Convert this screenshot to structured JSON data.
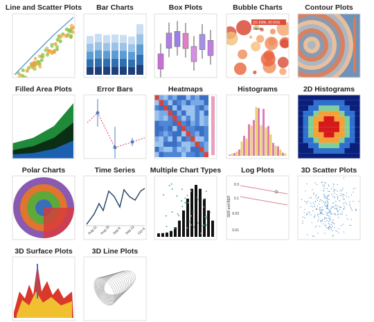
{
  "items": [
    {
      "title": "Line and Scatter Plots"
    },
    {
      "title": "Bar Charts"
    },
    {
      "title": "Box Plots"
    },
    {
      "title": "Bubble Charts",
      "labels": [
        "(31.698k, 82.603)",
        "Japan"
      ]
    },
    {
      "title": "Contour Plots"
    },
    {
      "title": "Filled Area Plots"
    },
    {
      "title": "Error Bars"
    },
    {
      "title": "Heatmaps"
    },
    {
      "title": "Histograms"
    },
    {
      "title": "2D Histograms"
    },
    {
      "title": "Polar Charts"
    },
    {
      "title": "Time Series",
      "labels": [
        "Aug 11",
        "Aug 25",
        "Sep 8",
        "Sep 22",
        "Oct 6"
      ]
    },
    {
      "title": "Multiple Chart Types"
    },
    {
      "title": "Log Plots",
      "labels": [
        "0.3",
        "0.1",
        "0.03",
        "0.01",
        "SER and BER"
      ]
    },
    {
      "title": "3D Scatter Plots"
    },
    {
      "title": "3D Surface Plots"
    },
    {
      "title": "3D Line Plots"
    }
  ]
}
